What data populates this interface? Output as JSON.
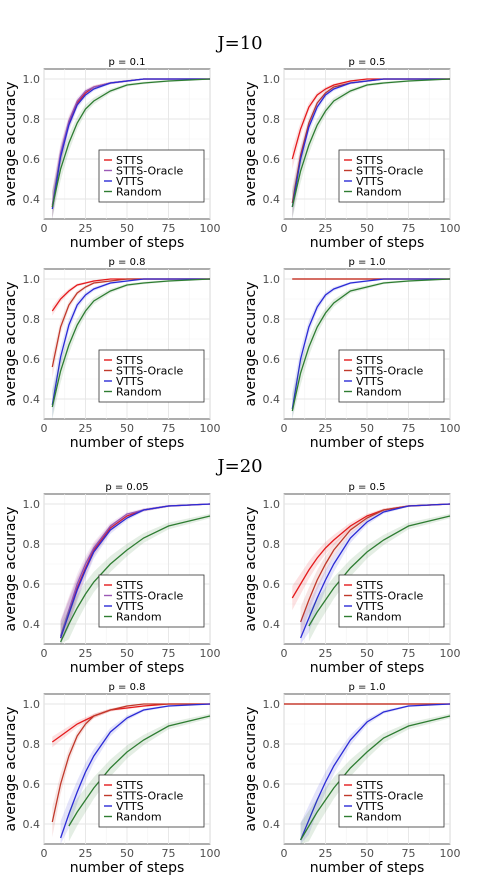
{
  "sections": [
    "J=10",
    "J=20"
  ],
  "chart_data": [
    {
      "type": "line",
      "title": "p = 0.1",
      "xlabel": "number of steps",
      "ylabel": "average accuracy",
      "xlim": [
        0,
        100
      ],
      "ylim": [
        0.3,
        1.05
      ],
      "xticks": [
        "0",
        "25",
        "50",
        "75",
        "100"
      ],
      "yticks": [
        "0.4",
        "0.6",
        "0.8",
        "1.0"
      ],
      "grid": true,
      "legend_position": "bottom-right",
      "series": [
        {
          "name": "STTS",
          "color": "#e41a1c",
          "x": [
            5,
            10,
            15,
            20,
            25,
            30,
            40,
            50,
            60,
            75,
            100
          ],
          "y": [
            0.36,
            0.62,
            0.78,
            0.88,
            0.93,
            0.96,
            0.98,
            0.99,
            1.0,
            1.0,
            1.0
          ]
        },
        {
          "name": "STTS-Oracle",
          "color": "#9b59b6",
          "x": [
            5,
            10,
            15,
            20,
            25,
            30,
            40,
            50,
            60,
            75,
            100
          ],
          "y": [
            0.37,
            0.63,
            0.79,
            0.89,
            0.94,
            0.96,
            0.98,
            0.99,
            1.0,
            1.0,
            1.0
          ]
        },
        {
          "name": "VTTS",
          "color": "#2b2bd6",
          "x": [
            5,
            10,
            15,
            20,
            25,
            30,
            40,
            50,
            60,
            75,
            100
          ],
          "y": [
            0.35,
            0.61,
            0.77,
            0.87,
            0.92,
            0.95,
            0.98,
            0.99,
            1.0,
            1.0,
            1.0
          ]
        },
        {
          "name": "Random",
          "color": "#2e7d32",
          "x": [
            5,
            10,
            15,
            20,
            25,
            30,
            40,
            50,
            60,
            75,
            100
          ],
          "y": [
            0.36,
            0.55,
            0.68,
            0.78,
            0.85,
            0.89,
            0.94,
            0.97,
            0.98,
            0.99,
            1.0
          ]
        }
      ]
    },
    {
      "type": "line",
      "title": "p = 0.5",
      "xlabel": "number of steps",
      "ylabel": "average accuracy",
      "xlim": [
        0,
        100
      ],
      "ylim": [
        0.3,
        1.05
      ],
      "xticks": [
        "0",
        "25",
        "50",
        "75",
        "100"
      ],
      "yticks": [
        "0.4",
        "0.6",
        "0.8",
        "1.0"
      ],
      "grid": true,
      "legend_position": "bottom-right",
      "series": [
        {
          "name": "STTS",
          "color": "#e41a1c",
          "x": [
            5,
            10,
            15,
            20,
            25,
            30,
            40,
            50,
            60,
            75,
            100
          ],
          "y": [
            0.6,
            0.75,
            0.86,
            0.92,
            0.95,
            0.97,
            0.99,
            1.0,
            1.0,
            1.0,
            1.0
          ]
        },
        {
          "name": "STTS-Oracle",
          "color": "#c0392b",
          "x": [
            5,
            10,
            15,
            20,
            25,
            30,
            40,
            50,
            60,
            75,
            100
          ],
          "y": [
            0.38,
            0.62,
            0.78,
            0.88,
            0.93,
            0.96,
            0.98,
            0.99,
            1.0,
            1.0,
            1.0
          ]
        },
        {
          "name": "VTTS",
          "color": "#2b2bd6",
          "x": [
            5,
            10,
            15,
            20,
            25,
            30,
            40,
            50,
            60,
            75,
            100
          ],
          "y": [
            0.36,
            0.6,
            0.76,
            0.86,
            0.92,
            0.95,
            0.98,
            0.99,
            1.0,
            1.0,
            1.0
          ]
        },
        {
          "name": "Random",
          "color": "#2e7d32",
          "x": [
            5,
            10,
            15,
            20,
            25,
            30,
            40,
            50,
            60,
            75,
            100
          ],
          "y": [
            0.36,
            0.54,
            0.67,
            0.77,
            0.84,
            0.89,
            0.94,
            0.97,
            0.98,
            0.99,
            1.0
          ]
        }
      ]
    },
    {
      "type": "line",
      "title": "p = 0.8",
      "xlabel": "number of steps",
      "ylabel": "average accuracy",
      "xlim": [
        0,
        100
      ],
      "ylim": [
        0.3,
        1.05
      ],
      "xticks": [
        "0",
        "25",
        "50",
        "75",
        "100"
      ],
      "yticks": [
        "0.4",
        "0.6",
        "0.8",
        "1.0"
      ],
      "grid": true,
      "legend_position": "bottom-right",
      "series": [
        {
          "name": "STTS",
          "color": "#e41a1c",
          "x": [
            5,
            10,
            15,
            20,
            25,
            30,
            40,
            50,
            60,
            75,
            100
          ],
          "y": [
            0.84,
            0.9,
            0.94,
            0.97,
            0.98,
            0.99,
            1.0,
            1.0,
            1.0,
            1.0,
            1.0
          ]
        },
        {
          "name": "STTS-Oracle",
          "color": "#c0392b",
          "x": [
            5,
            10,
            15,
            20,
            25,
            30,
            40,
            50,
            60,
            75,
            100
          ],
          "y": [
            0.56,
            0.76,
            0.87,
            0.93,
            0.96,
            0.98,
            0.99,
            1.0,
            1.0,
            1.0,
            1.0
          ]
        },
        {
          "name": "VTTS",
          "color": "#2b2bd6",
          "x": [
            5,
            10,
            15,
            20,
            25,
            30,
            40,
            50,
            60,
            75,
            100
          ],
          "y": [
            0.37,
            0.61,
            0.77,
            0.87,
            0.92,
            0.95,
            0.98,
            0.99,
            1.0,
            1.0,
            1.0
          ]
        },
        {
          "name": "Random",
          "color": "#2e7d32",
          "x": [
            5,
            10,
            15,
            20,
            25,
            30,
            40,
            50,
            60,
            75,
            100
          ],
          "y": [
            0.36,
            0.54,
            0.67,
            0.77,
            0.84,
            0.89,
            0.94,
            0.97,
            0.98,
            0.99,
            1.0
          ]
        }
      ]
    },
    {
      "type": "line",
      "title": "p = 1.0",
      "xlabel": "number of steps",
      "ylabel": "average accuracy",
      "xlim": [
        0,
        100
      ],
      "ylim": [
        0.3,
        1.05
      ],
      "xticks": [
        "0",
        "25",
        "50",
        "75",
        "100"
      ],
      "yticks": [
        "0.4",
        "0.6",
        "0.8",
        "1.0"
      ],
      "grid": true,
      "legend_position": "bottom-right",
      "series": [
        {
          "name": "STTS",
          "color": "#e41a1c",
          "x": [
            5,
            100
          ],
          "y": [
            1.0,
            1.0
          ]
        },
        {
          "name": "STTS-Oracle",
          "color": "#c0392b",
          "x": [
            5,
            100
          ],
          "y": [
            1.0,
            1.0
          ]
        },
        {
          "name": "VTTS",
          "color": "#2b2bd6",
          "x": [
            5,
            10,
            15,
            20,
            25,
            30,
            40,
            50,
            60,
            75,
            100
          ],
          "y": [
            0.35,
            0.6,
            0.76,
            0.86,
            0.92,
            0.95,
            0.98,
            0.99,
            1.0,
            1.0,
            1.0
          ]
        },
        {
          "name": "Random",
          "color": "#2e7d32",
          "x": [
            5,
            10,
            15,
            20,
            25,
            30,
            40,
            50,
            60,
            75,
            100
          ],
          "y": [
            0.34,
            0.53,
            0.66,
            0.76,
            0.83,
            0.88,
            0.94,
            0.96,
            0.98,
            0.99,
            1.0
          ]
        }
      ]
    },
    {
      "type": "line",
      "title": "p = 0.05",
      "xlabel": "number of steps",
      "ylabel": "average accuracy",
      "xlim": [
        0,
        100
      ],
      "ylim": [
        0.3,
        1.05
      ],
      "xticks": [
        "0",
        "25",
        "50",
        "75",
        "100"
      ],
      "yticks": [
        "0.4",
        "0.6",
        "0.8",
        "1.0"
      ],
      "grid": true,
      "legend_position": "bottom-right",
      "series": [
        {
          "name": "STTS",
          "color": "#e41a1c",
          "x": [
            10,
            15,
            20,
            25,
            30,
            40,
            50,
            60,
            75,
            100
          ],
          "y": [
            0.33,
            0.46,
            0.58,
            0.68,
            0.77,
            0.88,
            0.94,
            0.97,
            0.99,
            1.0
          ]
        },
        {
          "name": "STTS-Oracle",
          "color": "#9b59b6",
          "x": [
            10,
            15,
            20,
            25,
            30,
            40,
            50,
            60,
            75,
            100
          ],
          "y": [
            0.34,
            0.47,
            0.6,
            0.7,
            0.78,
            0.89,
            0.95,
            0.97,
            0.99,
            1.0
          ]
        },
        {
          "name": "VTTS",
          "color": "#2b2bd6",
          "x": [
            10,
            15,
            20,
            25,
            30,
            40,
            50,
            60,
            75,
            100
          ],
          "y": [
            0.33,
            0.45,
            0.57,
            0.67,
            0.76,
            0.87,
            0.93,
            0.97,
            0.99,
            1.0
          ]
        },
        {
          "name": "Random",
          "color": "#2e7d32",
          "x": [
            10,
            15,
            20,
            25,
            30,
            40,
            50,
            60,
            75,
            100
          ],
          "y": [
            0.31,
            0.4,
            0.48,
            0.55,
            0.61,
            0.7,
            0.77,
            0.83,
            0.89,
            0.94
          ]
        }
      ]
    },
    {
      "type": "line",
      "title": "p = 0.5",
      "xlabel": "number of steps",
      "ylabel": "average accuracy",
      "xlim": [
        0,
        100
      ],
      "ylim": [
        0.3,
        1.05
      ],
      "xticks": [
        "0",
        "25",
        "50",
        "75",
        "100"
      ],
      "yticks": [
        "0.4",
        "0.6",
        "0.8",
        "1.0"
      ],
      "grid": true,
      "legend_position": "bottom-right",
      "series": [
        {
          "name": "STTS",
          "color": "#e41a1c",
          "x": [
            5,
            10,
            15,
            20,
            25,
            30,
            40,
            50,
            60,
            75,
            100
          ],
          "y": [
            0.53,
            0.6,
            0.67,
            0.73,
            0.78,
            0.82,
            0.89,
            0.94,
            0.97,
            0.99,
            1.0
          ]
        },
        {
          "name": "STTS-Oracle",
          "color": "#c0392b",
          "x": [
            10,
            15,
            20,
            25,
            30,
            40,
            50,
            60,
            75,
            100
          ],
          "y": [
            0.41,
            0.52,
            0.62,
            0.7,
            0.77,
            0.87,
            0.93,
            0.97,
            0.99,
            1.0
          ]
        },
        {
          "name": "VTTS",
          "color": "#2b2bd6",
          "x": [
            10,
            15,
            20,
            25,
            30,
            40,
            50,
            60,
            75,
            100
          ],
          "y": [
            0.33,
            0.43,
            0.53,
            0.62,
            0.7,
            0.83,
            0.91,
            0.96,
            0.99,
            1.0
          ]
        },
        {
          "name": "Random",
          "color": "#2e7d32",
          "x": [
            15,
            20,
            25,
            30,
            40,
            50,
            60,
            75,
            100
          ],
          "y": [
            0.39,
            0.46,
            0.52,
            0.58,
            0.68,
            0.76,
            0.82,
            0.89,
            0.94
          ]
        }
      ]
    },
    {
      "type": "line",
      "title": "p = 0.8",
      "xlabel": "number of steps",
      "ylabel": "average accuracy",
      "xlim": [
        0,
        100
      ],
      "ylim": [
        0.3,
        1.05
      ],
      "xticks": [
        "0",
        "25",
        "50",
        "75",
        "100"
      ],
      "yticks": [
        "0.4",
        "0.6",
        "0.8",
        "1.0"
      ],
      "grid": true,
      "legend_position": "bottom-right",
      "series": [
        {
          "name": "STTS",
          "color": "#e41a1c",
          "x": [
            5,
            10,
            15,
            20,
            25,
            30,
            40,
            50,
            60,
            75,
            100
          ],
          "y": [
            0.81,
            0.84,
            0.87,
            0.9,
            0.92,
            0.94,
            0.97,
            0.98,
            0.99,
            1.0,
            1.0
          ]
        },
        {
          "name": "STTS-Oracle",
          "color": "#c0392b",
          "x": [
            5,
            10,
            15,
            20,
            25,
            30,
            40,
            50,
            60,
            75,
            100
          ],
          "y": [
            0.41,
            0.6,
            0.74,
            0.84,
            0.9,
            0.94,
            0.97,
            0.99,
            1.0,
            1.0,
            1.0
          ]
        },
        {
          "name": "VTTS",
          "color": "#2b2bd6",
          "x": [
            10,
            15,
            20,
            25,
            30,
            40,
            50,
            60,
            75,
            100
          ],
          "y": [
            0.33,
            0.45,
            0.56,
            0.66,
            0.74,
            0.86,
            0.93,
            0.97,
            0.99,
            1.0
          ]
        },
        {
          "name": "Random",
          "color": "#2e7d32",
          "x": [
            15,
            20,
            25,
            30,
            40,
            50,
            60,
            75,
            100
          ],
          "y": [
            0.39,
            0.46,
            0.52,
            0.58,
            0.68,
            0.76,
            0.82,
            0.89,
            0.94
          ]
        }
      ]
    },
    {
      "type": "line",
      "title": "p = 1.0",
      "xlabel": "number of steps",
      "ylabel": "average accuracy",
      "xlim": [
        0,
        100
      ],
      "ylim": [
        0.3,
        1.05
      ],
      "xticks": [
        "0",
        "25",
        "50",
        "75",
        "100"
      ],
      "yticks": [
        "0.4",
        "0.6",
        "0.8",
        "1.0"
      ],
      "grid": true,
      "legend_position": "bottom-right",
      "series": [
        {
          "name": "STTS",
          "color": "#e41a1c",
          "x": [
            0,
            100
          ],
          "y": [
            1.0,
            1.0
          ]
        },
        {
          "name": "STTS-Oracle",
          "color": "#c0392b",
          "x": [
            0,
            100
          ],
          "y": [
            1.0,
            1.0
          ]
        },
        {
          "name": "VTTS",
          "color": "#2b2bd6",
          "x": [
            10,
            15,
            20,
            25,
            30,
            40,
            50,
            60,
            75,
            100
          ],
          "y": [
            0.32,
            0.42,
            0.52,
            0.61,
            0.69,
            0.82,
            0.91,
            0.96,
            0.99,
            1.0
          ]
        },
        {
          "name": "Random",
          "color": "#2e7d32",
          "x": [
            10,
            15,
            20,
            25,
            30,
            40,
            50,
            60,
            75,
            100
          ],
          "y": [
            0.32,
            0.39,
            0.46,
            0.52,
            0.58,
            0.68,
            0.76,
            0.83,
            0.89,
            0.94
          ]
        }
      ]
    }
  ]
}
